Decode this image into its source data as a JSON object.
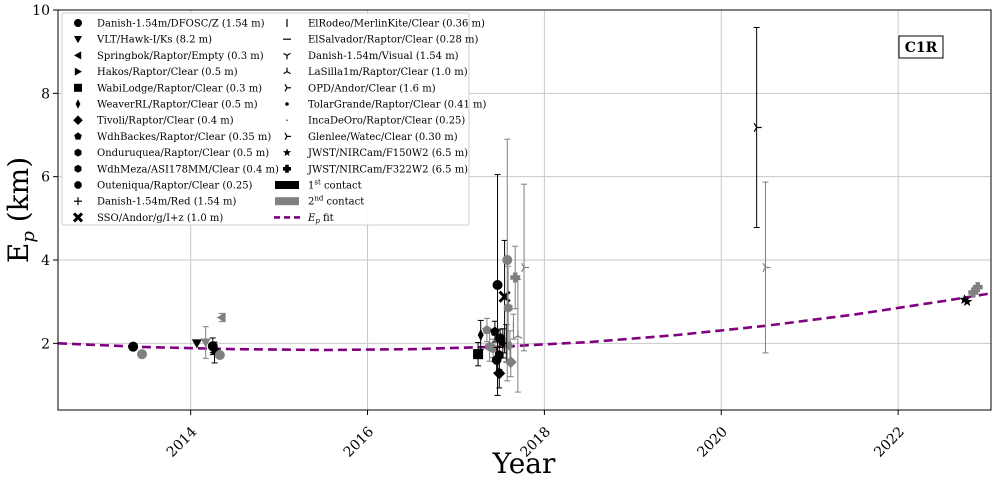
{
  "chart_data": {
    "type": "scatter",
    "title": "",
    "xlabel": "Year",
    "ylabel": "E",
    "ylabel_subscript": "p",
    "ylabel_unit": " (km)",
    "xlim": [
      2012.5,
      2023.05
    ],
    "ylim": [
      0.4,
      10
    ],
    "x_ticks": [
      2014,
      2016,
      2018,
      2020,
      2022
    ],
    "y_ticks": [
      2,
      4,
      6,
      8,
      10
    ],
    "grid": true,
    "legend_position": "top-left",
    "annotation": "C1R",
    "legend": [
      {
        "label": "Danish-1.54m/DFOSC/Z (1.54 m)",
        "marker": "circle"
      },
      {
        "label": "VLT/Hawk-I/Ks (8.2 m)",
        "marker": "tri-down"
      },
      {
        "label": "Springbok/Raptor/Empty (0.3 m)",
        "marker": "tri-left"
      },
      {
        "label": "Hakos/Raptor/Clear (0.5 m)",
        "marker": "tri-right"
      },
      {
        "label": "WabiLodge/Raptor/Clear (0.3 m)",
        "marker": "square"
      },
      {
        "label": "WeaverRL/Raptor/Clear (0.5 m)",
        "marker": "thin-diamond"
      },
      {
        "label": "Tivoli/Raptor/Clear (0.4 m)",
        "marker": "diamond"
      },
      {
        "label": "WdhBackes/Raptor/Clear (0.35 m)",
        "marker": "pentagon"
      },
      {
        "label": "Onduruquea/Raptor/Clear (0.5 m)",
        "marker": "hexagon"
      },
      {
        "label": "WdhMeza/ASI178MM/Clear (0.4 m)",
        "marker": "hexagon"
      },
      {
        "label": "Outeniqua/Raptor/Clear (0.25)",
        "marker": "octagon"
      },
      {
        "label": "Danish-1.54m/Red (1.54 m)",
        "marker": "plus-thin"
      },
      {
        "label": "SSO/Andor/g/I+z (1.0 m)",
        "marker": "x-filled"
      },
      {
        "label": "ElRodeo/MerlinKite/Clear (0.36 m)",
        "marker": "vline"
      },
      {
        "label": "ElSalvador/Raptor/Clear (0.28 m)",
        "marker": "hline"
      },
      {
        "label": "Danish-1.54m/Visual (1.54 m)",
        "marker": "tri1"
      },
      {
        "label": "LaSilla1m/Raptor/Clear (1.0 m)",
        "marker": "tri2"
      },
      {
        "label": "OPD/Andor/Clear (1.6 m)",
        "marker": "tri4"
      },
      {
        "label": "TolarGrande/Raptor/Clear (0.41 m)",
        "marker": "point"
      },
      {
        "label": "IncaDeOro/Raptor/Clear (0.25)",
        "marker": "pixel"
      },
      {
        "label": "Glenlee/Watec/Clear (0.30 m)",
        "marker": "tri4"
      },
      {
        "label": "JWST/NIRCam/F150W2 (6.5 m)",
        "marker": "star"
      },
      {
        "label": "JWST/NIRCam/F322W2 (6.5 m)",
        "marker": "plus-filled"
      },
      {
        "label": "1st contact",
        "marker": "bar-black"
      },
      {
        "label": "2nd contact",
        "marker": "bar-gray"
      },
      {
        "label": "Ep fit",
        "marker": "dash-purple"
      }
    ],
    "legend_extra": {
      "first_sup": "st",
      "second_sup": "nd",
      "contact_word": " contact",
      "fit_word": " fit"
    },
    "fit": {
      "name": "Ep fit",
      "x": [
        2012.5,
        2013.5,
        2014.5,
        2015.5,
        2016.5,
        2017.5,
        2018.5,
        2019.5,
        2020.5,
        2021.5,
        2022.5,
        2023.05
      ],
      "y": [
        2.0,
        1.91,
        1.86,
        1.84,
        1.86,
        1.92,
        2.03,
        2.2,
        2.42,
        2.69,
        3.01,
        3.2
      ]
    },
    "points": [
      {
        "x": 2013.35,
        "y": 1.92,
        "err": 0,
        "marker": "circle",
        "contact": 1
      },
      {
        "x": 2013.45,
        "y": 1.74,
        "err": 0,
        "marker": "circle",
        "contact": 2
      },
      {
        "x": 2014.07,
        "y": 2.0,
        "err": 0,
        "marker": "tri-down",
        "contact": 1
      },
      {
        "x": 2014.17,
        "y": 2.02,
        "err": 0.38,
        "marker": "tri-down",
        "contact": 2
      },
      {
        "x": 2014.25,
        "y": 1.93,
        "err": 0.2,
        "marker": "circle",
        "contact": 1
      },
      {
        "x": 2014.27,
        "y": 1.78,
        "err": 0.25,
        "marker": "tri-left",
        "contact": 1
      },
      {
        "x": 2014.33,
        "y": 1.72,
        "err": 0,
        "marker": "circle",
        "contact": 2
      },
      {
        "x": 2014.35,
        "y": 2.62,
        "err": 0.1,
        "marker": "tri-left",
        "contact": 2
      },
      {
        "x": 2017.25,
        "y": 1.74,
        "err": 0.28,
        "marker": "square",
        "contact": 1
      },
      {
        "x": 2017.28,
        "y": 2.2,
        "err": 0.35,
        "marker": "thin-diamond",
        "contact": 1
      },
      {
        "x": 2017.35,
        "y": 2.32,
        "err": 0.28,
        "marker": "pentagon",
        "contact": 2
      },
      {
        "x": 2017.38,
        "y": 1.92,
        "err": 0.35,
        "marker": "hexagon",
        "contact": 2
      },
      {
        "x": 2017.42,
        "y": 1.88,
        "err": 0.22,
        "marker": "hexagon",
        "contact": 2
      },
      {
        "x": 2017.44,
        "y": 2.28,
        "err": 0.25,
        "marker": "pentagon",
        "contact": 1
      },
      {
        "x": 2017.46,
        "y": 1.6,
        "err": 0.3,
        "marker": "octagon",
        "contact": 1
      },
      {
        "x": 2017.47,
        "y": 3.4,
        "err": 2.65,
        "marker": "circle",
        "contact": 1
      },
      {
        "x": 2017.49,
        "y": 1.72,
        "err": 0.35,
        "marker": "hexagon",
        "contact": 1
      },
      {
        "x": 2017.49,
        "y": 1.28,
        "err": 0.35,
        "marker": "diamond",
        "contact": 1
      },
      {
        "x": 2017.5,
        "y": 2.12,
        "err": 0.22,
        "marker": "circle",
        "contact": 1
      },
      {
        "x": 2017.53,
        "y": 2.0,
        "err": 0.35,
        "marker": "thin-diamond",
        "contact": 1
      },
      {
        "x": 2017.55,
        "y": 3.12,
        "err": 1.35,
        "marker": "x-filled",
        "contact": 1
      },
      {
        "x": 2017.57,
        "y": 2.0,
        "err": 0.45,
        "marker": "plus-thin",
        "contact": 1
      },
      {
        "x": 2017.58,
        "y": 4.0,
        "err": 2.9,
        "marker": "circle",
        "contact": 2
      },
      {
        "x": 2017.59,
        "y": 2.85,
        "err": 1.0,
        "marker": "hexagon",
        "contact": 2
      },
      {
        "x": 2017.61,
        "y": 1.95,
        "err": 0.35,
        "marker": "thin-diamond",
        "contact": 2
      },
      {
        "x": 2017.62,
        "y": 1.55,
        "err": 0.35,
        "marker": "diamond",
        "contact": 2
      },
      {
        "x": 2017.65,
        "y": 2.4,
        "err": 0.3,
        "marker": "vline",
        "contact": 2
      },
      {
        "x": 2017.67,
        "y": 3.58,
        "err": 0.75,
        "marker": "plus-filled",
        "contact": 2
      },
      {
        "x": 2017.7,
        "y": 2.18,
        "err": 1.35,
        "marker": "tri2",
        "contact": 2
      },
      {
        "x": 2017.77,
        "y": 3.82,
        "err": 2.0,
        "marker": "tri4",
        "contact": 2
      },
      {
        "x": 2020.4,
        "y": 7.18,
        "err": 2.4,
        "marker": "tri4",
        "contact": 1
      },
      {
        "x": 2020.5,
        "y": 3.82,
        "err": 2.05,
        "marker": "tri4",
        "contact": 2
      },
      {
        "x": 2022.75,
        "y": 3.05,
        "err": 0,
        "marker": "star",
        "contact": 1
      },
      {
        "x": 2022.78,
        "y": 3.0,
        "err": 0,
        "marker": "star",
        "contact": 1
      },
      {
        "x": 2022.85,
        "y": 3.22,
        "err": 0,
        "marker": "plus-filled",
        "contact": 2
      },
      {
        "x": 2022.9,
        "y": 3.35,
        "err": 0,
        "marker": "plus-filled",
        "contact": 2
      }
    ],
    "colors": {
      "contact1": "#000000",
      "contact2": "#808080",
      "fit": "#800080",
      "grid": "#c8c8c8"
    }
  }
}
